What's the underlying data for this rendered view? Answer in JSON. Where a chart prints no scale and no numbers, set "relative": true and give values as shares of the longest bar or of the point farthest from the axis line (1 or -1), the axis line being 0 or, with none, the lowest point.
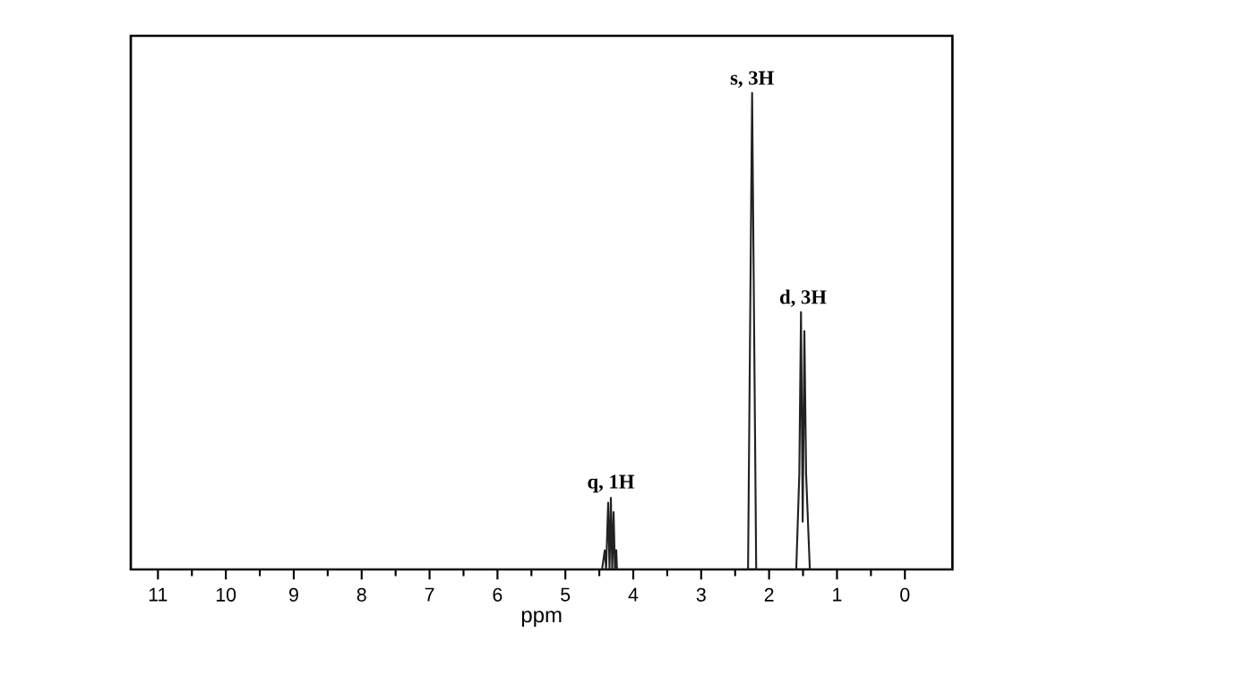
{
  "chart_data": {
    "type": "line",
    "relative": true,
    "xlabel": "ppm",
    "xlim": [
      11.4,
      -0.7
    ],
    "xticks": [
      11,
      10,
      9,
      8,
      7,
      6,
      5,
      4,
      3,
      2,
      1,
      0
    ],
    "grid": false,
    "marker": "none",
    "line_style": "solid",
    "series": [
      {
        "color": "#222222",
        "x": [
          11.4,
          4.46,
          4.42,
          4.4,
          4.37,
          4.35,
          4.33,
          4.31,
          4.29,
          4.27,
          4.25,
          4.24,
          4.22,
          4.18,
          2.31,
          2.25,
          2.19,
          1.6,
          1.555,
          1.53,
          1.505,
          1.48,
          1.455,
          1.4,
          -0.7
        ],
        "values": [
          0,
          0,
          0.04,
          0,
          0.14,
          0,
          0.15,
          0,
          0.12,
          0,
          0.04,
          0,
          0,
          0,
          0,
          1,
          0,
          0,
          0.2,
          0.54,
          0.1,
          0.5,
          0.2,
          0,
          0
        ]
      }
    ],
    "annotations": [
      {
        "text": "s, 3H",
        "x": 2.25,
        "y": 1
      },
      {
        "text": "d, 3H",
        "x": 1.5,
        "y": 0.54
      },
      {
        "text": "q, 1H",
        "x": 4.33,
        "y": 0.15
      }
    ]
  }
}
